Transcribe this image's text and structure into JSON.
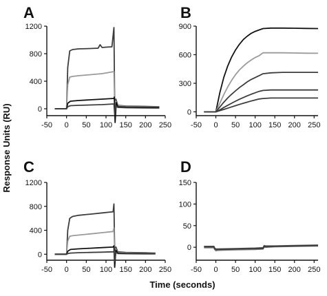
{
  "figure": {
    "ylabel": "Response Units (RU)",
    "xlabel": "Time (seconds)"
  },
  "colors": {
    "dark": "#3c3c3c",
    "gray": "#9a9a9a",
    "black": "#111111"
  },
  "chart_data": [
    {
      "id": "A",
      "type": "line",
      "letter": "A",
      "xlim": [
        -50,
        250
      ],
      "ylim": [
        -100,
        1200
      ],
      "xticks": [
        "-50",
        "0",
        "50",
        "100",
        "150",
        "200",
        "250"
      ],
      "yticks": [
        "0",
        "400",
        "800",
        "1200"
      ],
      "xtick_values": [
        -50,
        0,
        50,
        100,
        150,
        200,
        250
      ],
      "ytick_values": [
        0,
        400,
        800,
        1200
      ],
      "series": [
        {
          "color": "#3c3c3c",
          "x": [
            -30,
            0,
            3,
            8,
            15,
            30,
            60,
            80,
            85,
            90,
            100,
            115,
            120,
            122,
            125,
            130,
            150,
            200,
            235
          ],
          "y": [
            0,
            0,
            600,
            840,
            860,
            870,
            875,
            880,
            930,
            890,
            895,
            900,
            1180,
            60,
            140,
            50,
            40,
            35,
            30
          ]
        },
        {
          "color": "#9a9a9a",
          "x": [
            -30,
            0,
            3,
            8,
            15,
            30,
            60,
            90,
            120,
            122,
            125,
            130,
            150,
            200,
            235
          ],
          "y": [
            0,
            0,
            350,
            460,
            470,
            480,
            495,
            510,
            540,
            40,
            110,
            45,
            35,
            30,
            28
          ]
        },
        {
          "color": "#111111",
          "x": [
            -30,
            0,
            3,
            10,
            30,
            60,
            90,
            120,
            121,
            123,
            126,
            130,
            150,
            200,
            235
          ],
          "y": [
            0,
            0,
            80,
            110,
            120,
            130,
            140,
            150,
            170,
            -200,
            90,
            30,
            25,
            22,
            20
          ]
        },
        {
          "color": "#3c3c3c",
          "x": [
            -30,
            0,
            3,
            10,
            30,
            60,
            90,
            120,
            122,
            125,
            130,
            150,
            200,
            235
          ],
          "y": [
            0,
            0,
            30,
            45,
            50,
            55,
            60,
            70,
            -80,
            40,
            20,
            15,
            12,
            10
          ]
        }
      ]
    },
    {
      "id": "B",
      "type": "line",
      "letter": "B",
      "xlim": [
        -50,
        260
      ],
      "ylim": [
        -40,
        900
      ],
      "xticks": [
        "-50",
        "0",
        "50",
        "100",
        "150",
        "200",
        "250"
      ],
      "yticks": [
        "0",
        "300",
        "600",
        "900"
      ],
      "xtick_values": [
        -50,
        0,
        50,
        100,
        150,
        200,
        250
      ],
      "ytick_values": [
        0,
        300,
        600,
        900
      ],
      "series": [
        {
          "color": "#111111",
          "x": [
            -30,
            0,
            10,
            20,
            30,
            40,
            50,
            60,
            70,
            80,
            90,
            100,
            110,
            120,
            140,
            170,
            200,
            230,
            260
          ],
          "y": [
            0,
            0,
            200,
            360,
            480,
            575,
            650,
            710,
            760,
            795,
            825,
            845,
            860,
            875,
            880,
            880,
            878,
            876,
            875
          ]
        },
        {
          "color": "#9a9a9a",
          "x": [
            -30,
            0,
            10,
            20,
            30,
            40,
            50,
            60,
            70,
            80,
            90,
            100,
            110,
            120,
            140,
            170,
            200,
            230,
            260
          ],
          "y": [
            0,
            0,
            90,
            180,
            260,
            330,
            390,
            440,
            480,
            515,
            545,
            570,
            590,
            620,
            620,
            620,
            618,
            616,
            615
          ]
        },
        {
          "color": "#3c3c3c",
          "x": [
            -30,
            0,
            10,
            20,
            30,
            40,
            50,
            60,
            70,
            80,
            90,
            100,
            110,
            120,
            140,
            170,
            200,
            230,
            260
          ],
          "y": [
            0,
            0,
            50,
            100,
            145,
            185,
            220,
            255,
            285,
            315,
            340,
            360,
            380,
            400,
            410,
            415,
            415,
            415,
            415
          ]
        },
        {
          "color": "#3c3c3c",
          "x": [
            -30,
            0,
            10,
            20,
            30,
            40,
            50,
            60,
            70,
            80,
            90,
            100,
            110,
            120,
            140,
            170,
            200,
            230,
            260
          ],
          "y": [
            0,
            0,
            20,
            45,
            68,
            90,
            112,
            132,
            150,
            168,
            185,
            200,
            215,
            225,
            230,
            230,
            230,
            230,
            230
          ]
        },
        {
          "color": "#3c3c3c",
          "x": [
            -30,
            0,
            10,
            20,
            30,
            40,
            50,
            60,
            70,
            80,
            90,
            100,
            110,
            120,
            140,
            170,
            200,
            230,
            260
          ],
          "y": [
            0,
            0,
            12,
            25,
            38,
            52,
            65,
            78,
            90,
            102,
            114,
            125,
            135,
            140,
            145,
            145,
            145,
            145,
            145
          ]
        }
      ]
    },
    {
      "id": "C",
      "type": "line",
      "letter": "C",
      "xlim": [
        -50,
        250
      ],
      "ylim": [
        -100,
        1200
      ],
      "xticks": [
        "-50",
        "0",
        "50",
        "100",
        "150",
        "200",
        "250"
      ],
      "yticks": [
        "0",
        "400",
        "800",
        "1200"
      ],
      "xtick_values": [
        -50,
        0,
        50,
        100,
        150,
        200,
        250
      ],
      "ytick_values": [
        0,
        400,
        800,
        1200
      ],
      "series": [
        {
          "color": "#3c3c3c",
          "x": [
            -30,
            0,
            3,
            8,
            15,
            30,
            60,
            90,
            118,
            120,
            122,
            125,
            130,
            150,
            200,
            225
          ],
          "y": [
            0,
            0,
            400,
            600,
            630,
            650,
            670,
            690,
            710,
            840,
            50,
            120,
            40,
            30,
            25,
            20
          ]
        },
        {
          "color": "#9a9a9a",
          "x": [
            -30,
            0,
            3,
            8,
            15,
            30,
            60,
            90,
            118,
            120,
            122,
            125,
            130,
            150,
            200,
            225
          ],
          "y": [
            0,
            0,
            220,
            300,
            310,
            320,
            340,
            360,
            380,
            440,
            30,
            90,
            30,
            25,
            20,
            18
          ]
        },
        {
          "color": "#111111",
          "x": [
            -30,
            0,
            3,
            10,
            30,
            60,
            90,
            118,
            120,
            122,
            125,
            130,
            150,
            200,
            225
          ],
          "y": [
            0,
            0,
            50,
            80,
            90,
            100,
            110,
            120,
            140,
            -220,
            70,
            20,
            15,
            12,
            10
          ]
        },
        {
          "color": "#3c3c3c",
          "x": [
            -30,
            0,
            3,
            10,
            30,
            60,
            90,
            118,
            120,
            122,
            125,
            130,
            150,
            200,
            225
          ],
          "y": [
            0,
            0,
            10,
            20,
            25,
            30,
            35,
            40,
            50,
            -120,
            30,
            10,
            8,
            5,
            5
          ]
        }
      ]
    },
    {
      "id": "D",
      "type": "line",
      "letter": "D",
      "xlim": [
        -50,
        260
      ],
      "ylim": [
        -30,
        150
      ],
      "xticks": [
        "-50",
        "0",
        "50",
        "100",
        "150",
        "200",
        "250"
      ],
      "yticks": [
        "0",
        "50",
        "100",
        "150"
      ],
      "xtick_values": [
        -50,
        0,
        50,
        100,
        150,
        200,
        250
      ],
      "ytick_values": [
        0,
        50,
        100,
        150
      ],
      "series": [
        {
          "color": "#3c3c3c",
          "x": [
            -30,
            -5,
            -3,
            0,
            5,
            50,
            100,
            120,
            123,
            126,
            150,
            200,
            260
          ],
          "y": [
            0,
            0,
            -4,
            -6,
            -5,
            -4,
            -3,
            -2,
            3,
            2,
            2,
            3,
            4
          ]
        },
        {
          "color": "#555555",
          "x": [
            -30,
            -5,
            -3,
            0,
            5,
            50,
            100,
            120,
            123,
            126,
            150,
            200,
            260
          ],
          "y": [
            2,
            2,
            -2,
            -4,
            -4,
            -3,
            -2,
            -1,
            4,
            3,
            3,
            4,
            5
          ]
        },
        {
          "color": "#777777",
          "x": [
            -30,
            -5,
            -3,
            0,
            5,
            50,
            100,
            120,
            123,
            126,
            150,
            200,
            260
          ],
          "y": [
            -1,
            -1,
            -5,
            -8,
            -7,
            -6,
            -5,
            -4,
            1,
            0,
            1,
            2,
            3
          ]
        },
        {
          "color": "#3c3c3c",
          "x": [
            -30,
            -5,
            -3,
            0,
            5,
            50,
            100,
            120,
            123,
            126,
            150,
            200,
            260
          ],
          "y": [
            1,
            1,
            -3,
            -5,
            -5,
            -4,
            -3,
            -3,
            2,
            1,
            2,
            3,
            4
          ]
        }
      ]
    }
  ]
}
